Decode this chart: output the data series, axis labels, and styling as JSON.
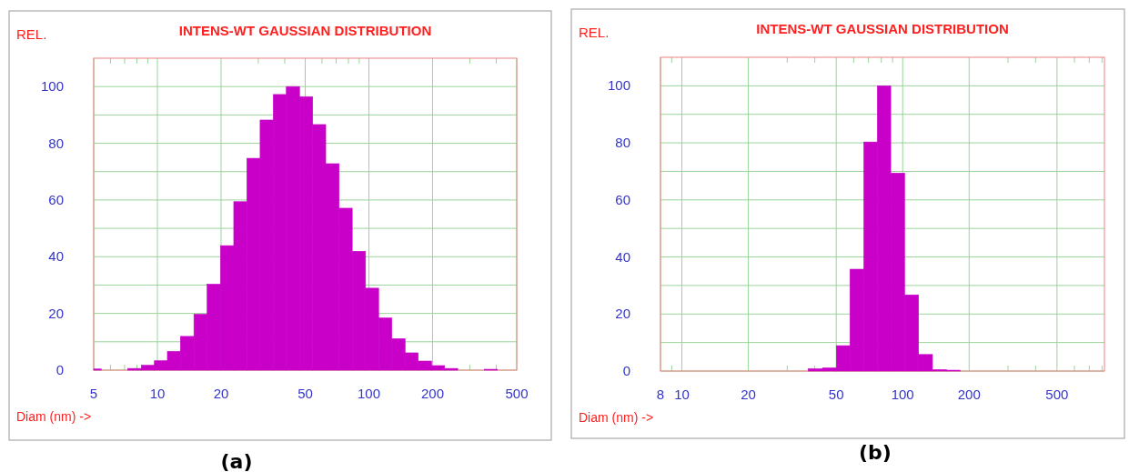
{
  "chart_data": [
    {
      "type": "histogram",
      "title": "INTENS-WT GAUSSIAN DISTRIBUTION",
      "xlabel": "Diam (nm) ->",
      "ylabel": "REL.",
      "annotations": [
        "(a)"
      ],
      "color": "#c800c8",
      "log": "x",
      "grid": true,
      "bins": [
        5,
        5.43,
        7.25,
        8.4,
        9.68,
        11.15,
        12.85,
        14.89,
        17.19,
        19.88,
        22.97,
        26.49,
        30.6,
        35.3,
        40.7,
        47.0,
        54.2,
        62.5,
        72.3,
        83.4,
        96.4,
        111.2,
        128.3,
        148.3,
        171.0,
        197.7,
        228,
        263,
        351,
        405
      ],
      "values": [
        0.4,
        0,
        0.6,
        1.7,
        3.3,
        6.6,
        11.9,
        19.7,
        30.3,
        43.9,
        59.4,
        74.7,
        88.2,
        97.2,
        100,
        96.4,
        86.6,
        72.8,
        57.1,
        41.9,
        28.9,
        18.4,
        11.1,
        6.1,
        3.2,
        1.6,
        0.6,
        0,
        0.3
      ],
      "xlim": [
        5,
        500
      ],
      "ylim": [
        0,
        110
      ],
      "xticks": [
        5,
        {
          "value": 6,
          "label": null
        },
        {
          "value": 7,
          "label": null
        },
        {
          "value": 8,
          "label": null
        },
        {
          "value": 9,
          "label": null
        },
        10,
        20,
        {
          "value": 30,
          "label": null
        },
        {
          "value": 40,
          "label": null
        },
        50,
        {
          "value": 60,
          "label": null
        },
        {
          "value": 70,
          "label": null
        },
        {
          "value": 80,
          "label": null
        },
        {
          "value": 90,
          "label": null
        },
        100,
        200,
        {
          "value": 300,
          "label": null
        },
        {
          "value": 400,
          "label": null
        },
        500
      ],
      "yticks": [
        0,
        {
          "value": 10,
          "label": null
        },
        20,
        {
          "value": 30,
          "label": null
        },
        40,
        {
          "value": 50,
          "label": null
        },
        60,
        {
          "value": 70,
          "label": null
        },
        80,
        {
          "value": 90,
          "label": null
        },
        100
      ]
    },
    {
      "type": "histogram",
      "title": "INTENS-WT GAUSSIAN DISTRIBUTION",
      "xlabel": "Diam (nm) ->",
      "ylabel": "REL.",
      "annotations": [
        "(b)"
      ],
      "color": "#c800c8",
      "log": "x",
      "grid": true,
      "bins": [
        37.4,
        43.4,
        50.1,
        57.7,
        66.7,
        76.8,
        88.3,
        102.0,
        118.0,
        136.4,
        157.7,
        182.0
      ],
      "values": [
        0.8,
        1.1,
        8.9,
        35.7,
        80.3,
        100,
        69.4,
        26.7,
        5.8,
        0.5,
        0.3
      ],
      "xlim": [
        8,
        820
      ],
      "ylim": [
        0,
        110
      ],
      "xticks": [
        8,
        {
          "value": 9,
          "label": null
        },
        10,
        20,
        {
          "value": 30,
          "label": null
        },
        {
          "value": 40,
          "label": null
        },
        50,
        {
          "value": 60,
          "label": null
        },
        {
          "value": 70,
          "label": null
        },
        {
          "value": 80,
          "label": null
        },
        {
          "value": 90,
          "label": null
        },
        100,
        200,
        {
          "value": 300,
          "label": null
        },
        {
          "value": 400,
          "label": null
        },
        500,
        {
          "value": 600,
          "label": null
        },
        {
          "value": 700,
          "label": null
        },
        {
          "value": 800,
          "label": null
        }
      ],
      "yticks": [
        0,
        {
          "value": 10,
          "label": null
        },
        20,
        {
          "value": 30,
          "label": null
        },
        40,
        {
          "value": 50,
          "label": null
        },
        60,
        {
          "value": 70,
          "label": null
        },
        80,
        {
          "value": 90,
          "label": null
        },
        100
      ]
    }
  ]
}
